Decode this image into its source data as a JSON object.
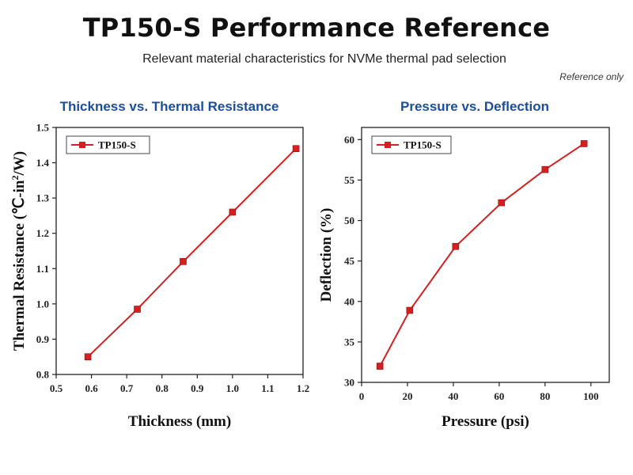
{
  "header": {
    "title": "TP150-S Performance Reference",
    "subtitle": "Relevant material characteristics for NVMe thermal pad selection",
    "note": "Reference only"
  },
  "colors": {
    "series": "#d42020",
    "panel_title": "#1a4fa0"
  },
  "chart_data": [
    {
      "type": "line",
      "title": "Thickness vs. Thermal Resistance",
      "xlabel": "Thickness (mm)",
      "ylabel_main": "Thermal Resistance (℃-in",
      "ylabel_sup": "2",
      "ylabel_tail": "/W)",
      "xlim": [
        0.5,
        1.2
      ],
      "ylim": [
        0.8,
        1.5
      ],
      "xticks": [
        0.5,
        0.6,
        0.7,
        0.8,
        0.9,
        1.0,
        1.1,
        1.2
      ],
      "xtick_labels": [
        "0.5",
        "0.6",
        "0.7",
        "0.8",
        "0.9",
        "1.0",
        "1.1",
        "1.2"
      ],
      "yticks": [
        0.8,
        0.9,
        1.0,
        1.1,
        1.2,
        1.3,
        1.4,
        1.5
      ],
      "ytick_labels": [
        "0.8",
        "0.9",
        "1.0",
        "1.1",
        "1.2",
        "1.3",
        "1.4",
        "1.5"
      ],
      "legend_position": "top-left",
      "grid": false,
      "series": [
        {
          "name": "TP150-S",
          "x": [
            0.59,
            0.73,
            0.86,
            1.0,
            1.18
          ],
          "y": [
            0.85,
            0.985,
            1.12,
            1.26,
            1.44
          ]
        }
      ]
    },
    {
      "type": "line",
      "title": "Pressure vs. Deflection",
      "xlabel": "Pressure (psi)",
      "ylabel": "Deflection (%)",
      "xlim": [
        0,
        108
      ],
      "ylim": [
        30,
        61.5
      ],
      "xticks": [
        0,
        20,
        40,
        60,
        80,
        100
      ],
      "xtick_labels": [
        "0",
        "20",
        "40",
        "60",
        "80",
        "100"
      ],
      "yticks": [
        30,
        35,
        40,
        45,
        50,
        55,
        60
      ],
      "ytick_labels": [
        "30",
        "35",
        "40",
        "45",
        "50",
        "55",
        "60"
      ],
      "legend_position": "top-left",
      "grid": false,
      "series": [
        {
          "name": "TP150-S",
          "x": [
            8,
            21,
            41,
            61,
            80,
            97
          ],
          "y": [
            32,
            38.9,
            46.8,
            52.2,
            56.3,
            59.5
          ]
        }
      ]
    }
  ]
}
